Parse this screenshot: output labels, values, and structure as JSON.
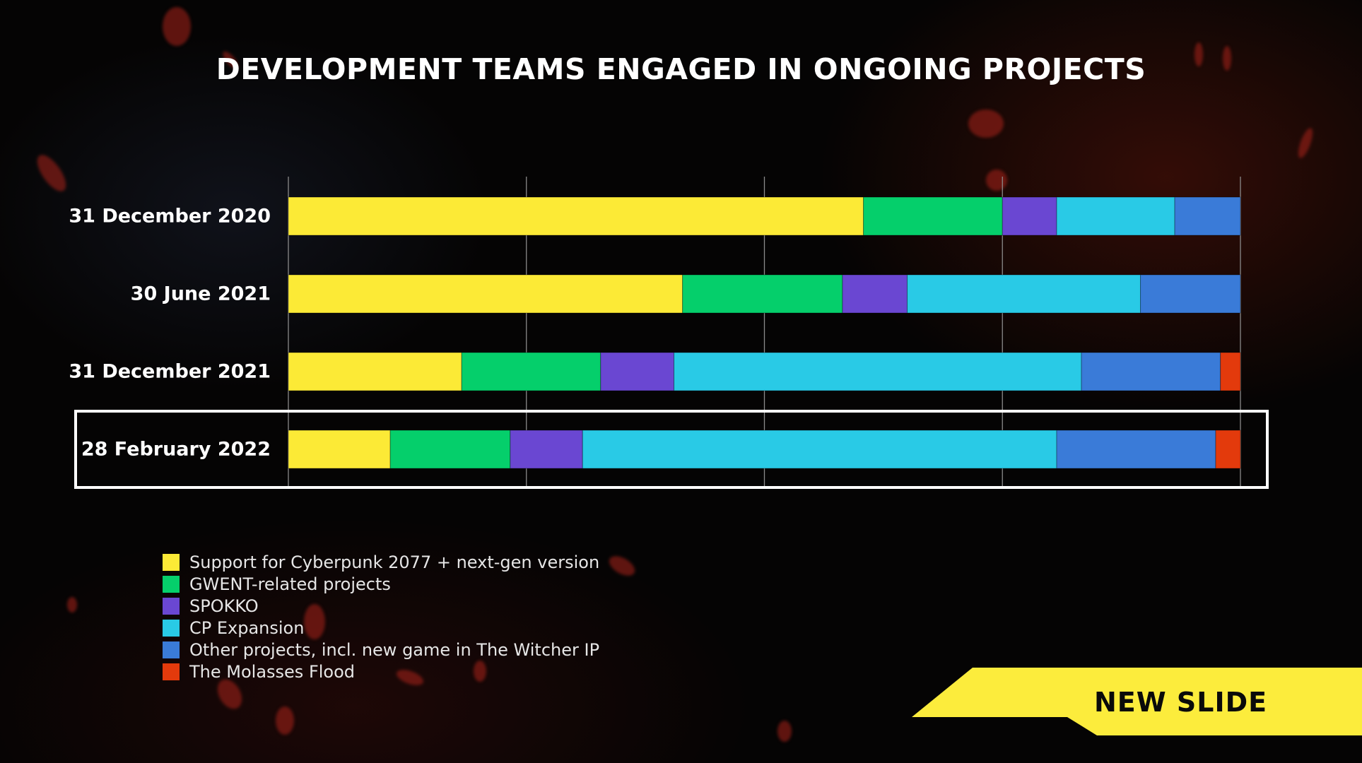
{
  "chart_data": {
    "type": "bar",
    "orientation": "horizontal",
    "stacked": true,
    "normalized": true,
    "title": "DEVELOPMENT TEAMS ENGAGED IN ONGOING PROJECTS",
    "xlabel": "",
    "ylabel": "",
    "xlim": [
      0,
      100
    ],
    "grid": true,
    "categories": [
      "31 December 2020",
      "30 June 2021",
      "31 December 2021",
      "28 February 2022"
    ],
    "highlighted_category": "28 February 2022",
    "series": [
      {
        "name": "Support for Cyberpunk 2077 + next-gen version",
        "color": "#fcea36",
        "values": [
          60.4,
          41.4,
          18.2,
          10.7
        ]
      },
      {
        "name": "GWENT-related projects",
        "color": "#05cf6b",
        "values": [
          14.6,
          16.8,
          14.6,
          12.6
        ]
      },
      {
        "name": "SPOKKO",
        "color": "#6a47d2",
        "values": [
          5.7,
          6.8,
          7.7,
          7.6
        ]
      },
      {
        "name": "CP Expansion",
        "color": "#29cae6",
        "values": [
          12.4,
          24.5,
          42.8,
          49.8
        ]
      },
      {
        "name": "Other projects, incl. new game in The Witcher IP",
        "color": "#3a7bd8",
        "values": [
          6.9,
          10.5,
          14.6,
          16.7
        ]
      },
      {
        "name": "The Molasses Flood",
        "color": "#e33a0c",
        "values": [
          0,
          0,
          2.1,
          2.6
        ]
      }
    ]
  },
  "badge": {
    "label": "NEW SLIDE",
    "color": "#fcec3c"
  }
}
